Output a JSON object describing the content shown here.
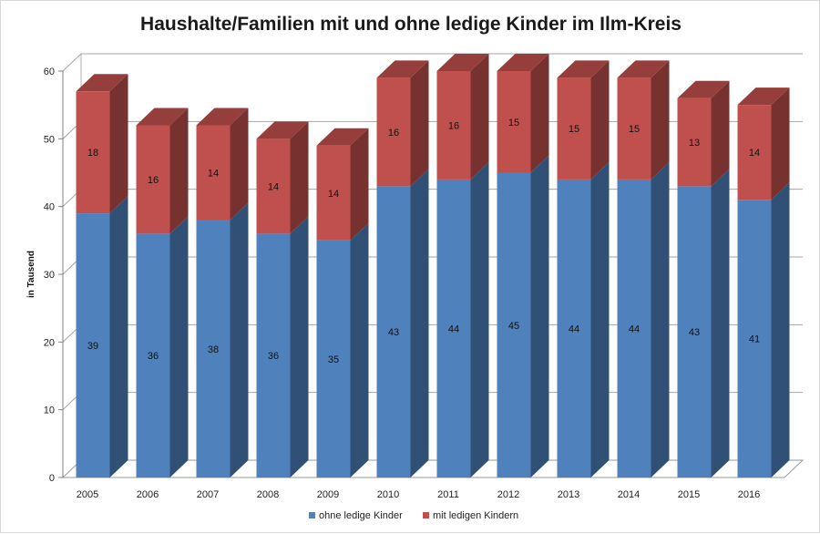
{
  "chart_data": {
    "type": "bar",
    "stacked": true,
    "three_d": true,
    "title": "Haushalte/Familien mit und ohne ledige Kinder im Ilm-Kreis",
    "xlabel": "",
    "ylabel": "in Tausend",
    "ylim": [
      0,
      60
    ],
    "yticks": [
      0,
      10,
      20,
      30,
      40,
      50,
      60
    ],
    "grid": true,
    "legend_position": "bottom",
    "categories": [
      "2005",
      "2006",
      "2007",
      "2008",
      "2009",
      "2010",
      "2011",
      "2012",
      "2013",
      "2014",
      "2015",
      "2016"
    ],
    "series": [
      {
        "name": "ohne ledige Kinder",
        "color": "#4F81BD",
        "values": [
          39,
          36,
          38,
          36,
          35,
          43,
          44,
          45,
          44,
          44,
          43,
          41
        ]
      },
      {
        "name": "mit ledigen Kindern",
        "color": "#C0504D",
        "values": [
          18,
          16,
          14,
          14,
          14,
          16,
          16,
          15,
          15,
          15,
          13,
          14
        ]
      }
    ]
  }
}
